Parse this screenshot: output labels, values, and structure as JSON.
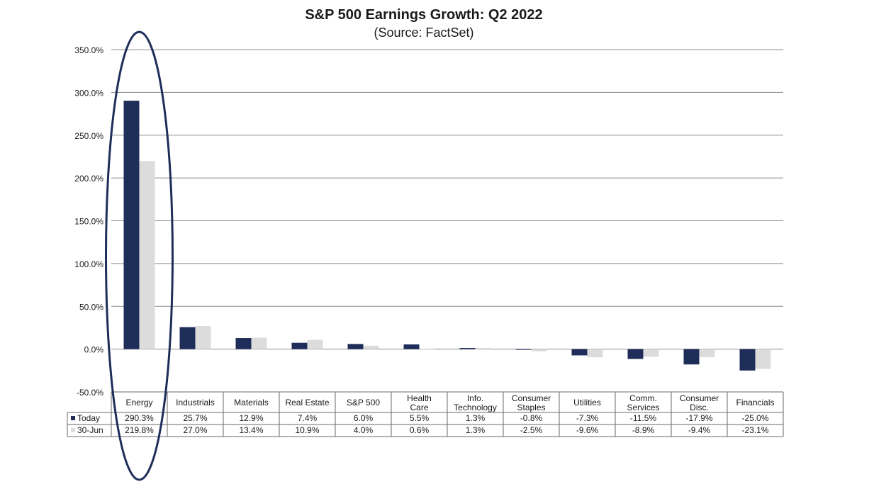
{
  "chart_data": {
    "type": "bar",
    "title": "S&P 500 Earnings Growth:  Q2 2022",
    "subtitle": "(Source: FactSet)",
    "categories": [
      [
        "Energy"
      ],
      [
        "Industrials"
      ],
      [
        "Materials"
      ],
      [
        "Real Estate"
      ],
      [
        "S&P 500"
      ],
      [
        "Health",
        "Care"
      ],
      [
        "Info.",
        "Technology"
      ],
      [
        "Consumer",
        "Staples"
      ],
      [
        "Utilities"
      ],
      [
        "Comm.",
        "Services"
      ],
      [
        "Consumer",
        "Disc."
      ],
      [
        "Financials"
      ]
    ],
    "series": [
      {
        "name": "Today",
        "color": "#1f2d5a",
        "values": [
          290.3,
          25.7,
          12.9,
          7.4,
          6.0,
          5.5,
          1.3,
          -0.8,
          -7.3,
          -11.5,
          -17.9,
          -25.0
        ],
        "labels": [
          "290.3%",
          "25.7%",
          "12.9%",
          "7.4%",
          "6.0%",
          "5.5%",
          "1.3%",
          "-0.8%",
          "-7.3%",
          "-11.5%",
          "-17.9%",
          "-25.0%"
        ]
      },
      {
        "name": "30-Jun",
        "color": "#dcdcdc",
        "values": [
          219.8,
          27.0,
          13.4,
          10.9,
          4.0,
          0.6,
          1.3,
          -2.5,
          -9.6,
          -8.9,
          -9.4,
          -23.1
        ],
        "labels": [
          "219.8%",
          "27.0%",
          "13.4%",
          "10.9%",
          "4.0%",
          "0.6%",
          "1.3%",
          "-2.5%",
          "-9.6%",
          "-8.9%",
          "-9.4%",
          "-23.1%"
        ]
      }
    ],
    "ylim": [
      -50,
      350
    ],
    "yticks": [
      350,
      300,
      250,
      200,
      150,
      100,
      50,
      0,
      -50
    ],
    "ytick_labels": [
      "350.0%",
      "300.0%",
      "250.0%",
      "200.0%",
      "150.0%",
      "100.0%",
      "50.0%",
      "0.0%",
      "-50.0%"
    ],
    "grid": true,
    "legend": "data-table",
    "annotation": {
      "shape": "ellipse",
      "highlights": "Energy",
      "color": "#1f2d5a"
    }
  }
}
